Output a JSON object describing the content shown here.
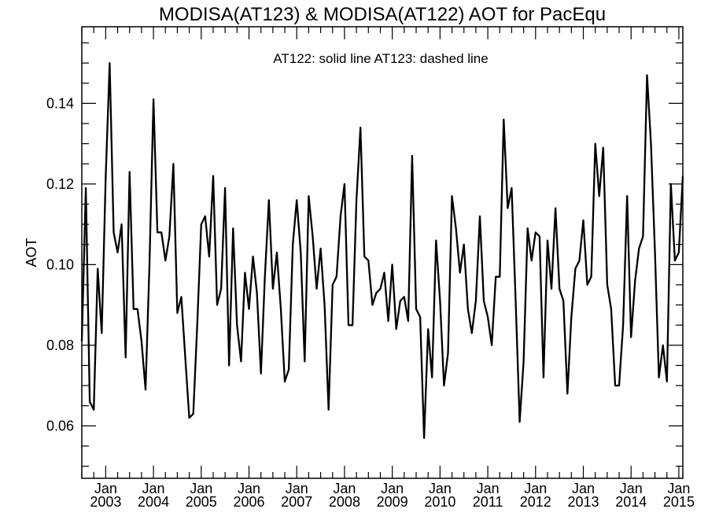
{
  "chart_data": {
    "type": "line",
    "title": "MODISA(AT123) & MODISA(AT122)  AOT for PacEqu",
    "annotation": "AT122: solid line   AT123: dashed line",
    "ylabel": "AOT",
    "xlabel": "",
    "xlim": [
      "2002-07",
      "2015-02"
    ],
    "ylim": [
      0.047,
      0.159
    ],
    "y_ticks": [
      0.06,
      0.08,
      0.1,
      0.12,
      0.14
    ],
    "y_tick_labels": [
      "0.06",
      "0.08",
      "0.10",
      "0.12",
      "0.14"
    ],
    "x_tick_month_label": "Jan",
    "x_ticks": [
      {
        "date": "2003-01",
        "year": "2003"
      },
      {
        "date": "2004-01",
        "year": "2004"
      },
      {
        "date": "2005-01",
        "year": "2005"
      },
      {
        "date": "2006-01",
        "year": "2006"
      },
      {
        "date": "2007-01",
        "year": "2007"
      },
      {
        "date": "2008-01",
        "year": "2008"
      },
      {
        "date": "2009-01",
        "year": "2009"
      },
      {
        "date": "2010-01",
        "year": "2010"
      },
      {
        "date": "2011-01",
        "year": "2011"
      },
      {
        "date": "2012-01",
        "year": "2012"
      },
      {
        "date": "2013-01",
        "year": "2013"
      },
      {
        "date": "2014-01",
        "year": "2014"
      },
      {
        "date": "2015-01",
        "year": "2015"
      }
    ],
    "grid": false,
    "line_color": "#000000",
    "series": [
      {
        "name": "AT122",
        "style": "solid",
        "x": [
          "2002-07",
          "2002-08",
          "2002-09",
          "2002-10",
          "2002-11",
          "2002-12",
          "2003-01",
          "2003-02",
          "2003-03",
          "2003-04",
          "2003-05",
          "2003-06",
          "2003-07",
          "2003-08",
          "2003-09",
          "2003-10",
          "2003-11",
          "2003-12",
          "2004-01",
          "2004-02",
          "2004-03",
          "2004-04",
          "2004-05",
          "2004-06",
          "2004-07",
          "2004-08",
          "2004-09",
          "2004-10",
          "2004-11",
          "2004-12",
          "2005-01",
          "2005-02",
          "2005-03",
          "2005-04",
          "2005-05",
          "2005-06",
          "2005-07",
          "2005-08",
          "2005-09",
          "2005-10",
          "2005-11",
          "2005-12",
          "2006-01",
          "2006-02",
          "2006-03",
          "2006-04",
          "2006-05",
          "2006-06",
          "2006-07",
          "2006-08",
          "2006-09",
          "2006-10",
          "2006-11",
          "2006-12",
          "2007-01",
          "2007-02",
          "2007-03",
          "2007-04",
          "2007-05",
          "2007-06",
          "2007-07",
          "2007-08",
          "2007-09",
          "2007-10",
          "2007-11",
          "2007-12",
          "2008-01",
          "2008-02",
          "2008-03",
          "2008-04",
          "2008-05",
          "2008-06",
          "2008-07",
          "2008-08",
          "2008-09",
          "2008-10",
          "2008-11",
          "2008-12",
          "2009-01",
          "2009-02",
          "2009-03",
          "2009-04",
          "2009-05",
          "2009-06",
          "2009-07",
          "2009-08",
          "2009-09",
          "2009-10",
          "2009-11",
          "2009-12",
          "2010-01",
          "2010-02",
          "2010-03",
          "2010-04",
          "2010-05",
          "2010-06",
          "2010-07",
          "2010-08",
          "2010-09",
          "2010-10",
          "2010-11",
          "2010-12",
          "2011-01",
          "2011-02",
          "2011-03",
          "2011-04",
          "2011-05",
          "2011-06",
          "2011-07",
          "2011-08",
          "2011-09",
          "2011-10",
          "2011-11",
          "2011-12",
          "2012-01",
          "2012-02",
          "2012-03",
          "2012-04",
          "2012-05",
          "2012-06",
          "2012-07",
          "2012-08",
          "2012-09",
          "2012-10",
          "2012-11",
          "2012-12",
          "2013-01",
          "2013-02",
          "2013-03",
          "2013-04",
          "2013-05",
          "2013-06",
          "2013-07",
          "2013-08",
          "2013-09",
          "2013-10",
          "2013-11",
          "2013-12",
          "2014-01",
          "2014-02",
          "2014-03",
          "2014-04",
          "2014-05",
          "2014-06",
          "2014-07",
          "2014-08",
          "2014-09",
          "2014-10",
          "2014-11",
          "2014-12",
          "2015-01",
          "2015-02"
        ],
        "values": [
          0.081,
          0.119,
          0.066,
          0.064,
          0.099,
          0.083,
          0.122,
          0.15,
          0.108,
          0.103,
          0.11,
          0.077,
          0.123,
          0.089,
          0.089,
          0.081,
          0.069,
          0.1,
          0.141,
          0.108,
          0.108,
          0.101,
          0.107,
          0.125,
          0.088,
          0.092,
          0.077,
          0.062,
          0.063,
          0.085,
          0.11,
          0.112,
          0.102,
          0.122,
          0.09,
          0.094,
          0.119,
          0.075,
          0.109,
          0.085,
          0.076,
          0.098,
          0.089,
          0.102,
          0.093,
          0.073,
          0.097,
          0.116,
          0.094,
          0.103,
          0.089,
          0.071,
          0.074,
          0.105,
          0.116,
          0.103,
          0.076,
          0.117,
          0.107,
          0.094,
          0.104,
          0.09,
          0.064,
          0.095,
          0.097,
          0.112,
          0.12,
          0.085,
          0.085,
          0.116,
          0.134,
          0.102,
          0.101,
          0.09,
          0.093,
          0.094,
          0.098,
          0.086,
          0.1,
          0.084,
          0.091,
          0.092,
          0.086,
          0.127,
          0.089,
          0.087,
          0.057,
          0.084,
          0.072,
          0.106,
          0.091,
          0.07,
          0.078,
          0.117,
          0.109,
          0.098,
          0.105,
          0.089,
          0.083,
          0.091,
          0.112,
          0.091,
          0.087,
          0.08,
          0.097,
          0.097,
          0.136,
          0.114,
          0.119,
          0.091,
          0.061,
          0.076,
          0.109,
          0.101,
          0.108,
          0.107,
          0.072,
          0.106,
          0.094,
          0.114,
          0.094,
          0.091,
          0.068,
          0.087,
          0.099,
          0.101,
          0.111,
          0.095,
          0.097,
          0.13,
          0.117,
          0.129,
          0.095,
          0.089,
          0.07,
          0.07,
          0.085,
          0.117,
          0.082,
          0.096,
          0.104,
          0.107,
          0.147,
          0.13,
          0.103,
          0.072,
          0.08,
          0.071,
          0.12,
          0.101,
          0.103,
          0.122
        ]
      }
    ]
  }
}
